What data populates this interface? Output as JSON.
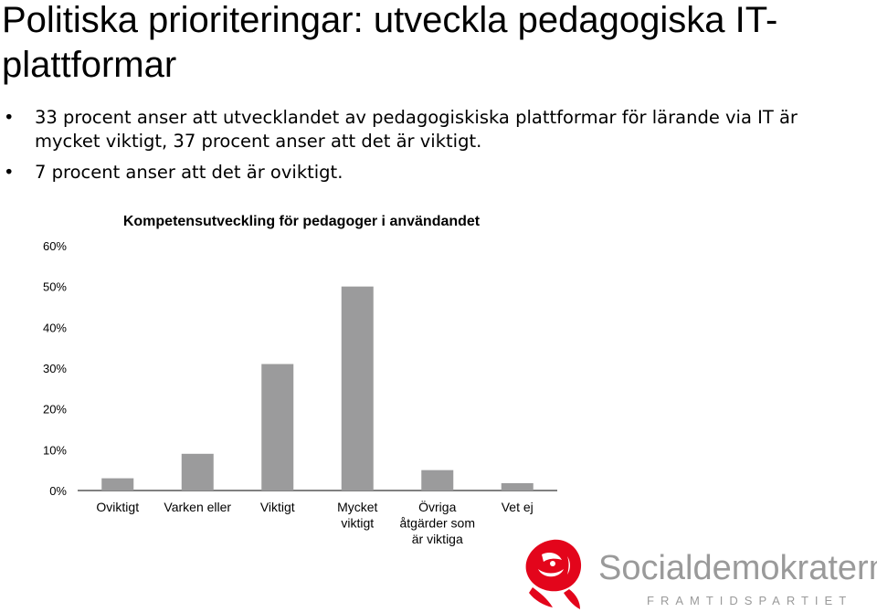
{
  "title": "Politiska prioriteringar: utveckla pedagogiska IT- plattformar",
  "bullets": [
    "33 procent anser att utvecklandet av pedagogiskiska plattformar för lärande via IT är mycket viktigt, 37 procent anser att det är viktigt.",
    "7 procent anser att det är oviktigt."
  ],
  "chart_data": {
    "type": "bar",
    "title": "Kompetensutveckling för pedagoger i användandet",
    "categories": [
      [
        "Oviktigt"
      ],
      [
        "Varken eller"
      ],
      [
        "Viktigt"
      ],
      [
        "Mycket",
        "viktigt"
      ],
      [
        "Övriga",
        "åtgärder som",
        "är viktiga"
      ],
      [
        "Vet ej"
      ]
    ],
    "values": [
      3,
      9,
      31,
      50,
      5,
      1.8
    ],
    "ylim": [
      0,
      60
    ],
    "yticks": [
      "0%",
      "10%",
      "20%",
      "30%",
      "40%",
      "50%",
      "60%"
    ],
    "bar_color": "#9b9b9c",
    "gridlines": false
  },
  "logo": {
    "wordmark": "Socialdemokraterna",
    "tagline": "FRAMTIDSPARTIET",
    "rose_color": "#e3051b"
  }
}
